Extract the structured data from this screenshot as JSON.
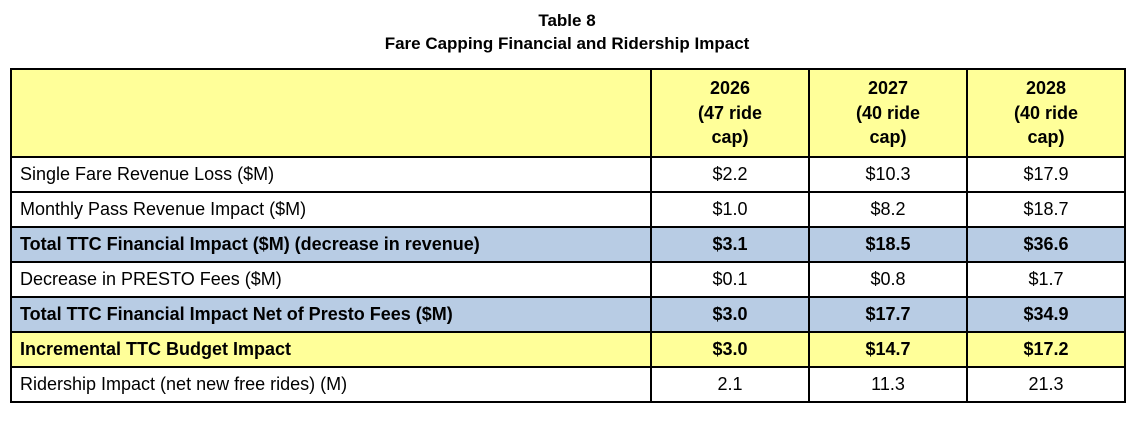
{
  "title": {
    "line1": "Table 8",
    "line2": "Fare Capping Financial and Ridership Impact"
  },
  "table": {
    "corner": "",
    "columns": [
      "2026\n(47 ride\ncap)",
      "2027\n(40 ride\ncap)",
      "2028\n(40 ride\ncap)"
    ],
    "rows": [
      {
        "label": "Single Fare Revenue Loss ($M)",
        "values": [
          "$2.2",
          "$10.3",
          "$17.9"
        ],
        "style": "normal"
      },
      {
        "label": "Monthly Pass Revenue Impact ($M)",
        "values": [
          "$1.0",
          "$8.2",
          "$18.7"
        ],
        "style": "normal"
      },
      {
        "label": "Total TTC Financial Impact ($M) (decrease in revenue)",
        "values": [
          "$3.1",
          "$18.5",
          "$36.6"
        ],
        "style": "blue"
      },
      {
        "label": "Decrease in PRESTO Fees ($M)",
        "values": [
          "$0.1",
          "$0.8",
          "$1.7"
        ],
        "style": "normal"
      },
      {
        "label": "Total TTC Financial Impact Net of Presto Fees ($M)",
        "values": [
          "$3.0",
          "$17.7",
          "$34.9"
        ],
        "style": "blue"
      },
      {
        "label": "Incremental TTC Budget Impact",
        "values": [
          "$3.0",
          "$14.7",
          "$17.2"
        ],
        "style": "yellow"
      },
      {
        "label": "Ridership Impact (net new free rides) (M)",
        "values": [
          "2.1",
          "11.3",
          "21.3"
        ],
        "style": "normal"
      }
    ]
  },
  "colors": {
    "header_yellow": "#ffff99",
    "highlight_blue": "#b8cce4",
    "highlight_yellow": "#ffff99",
    "border": "#000000"
  }
}
